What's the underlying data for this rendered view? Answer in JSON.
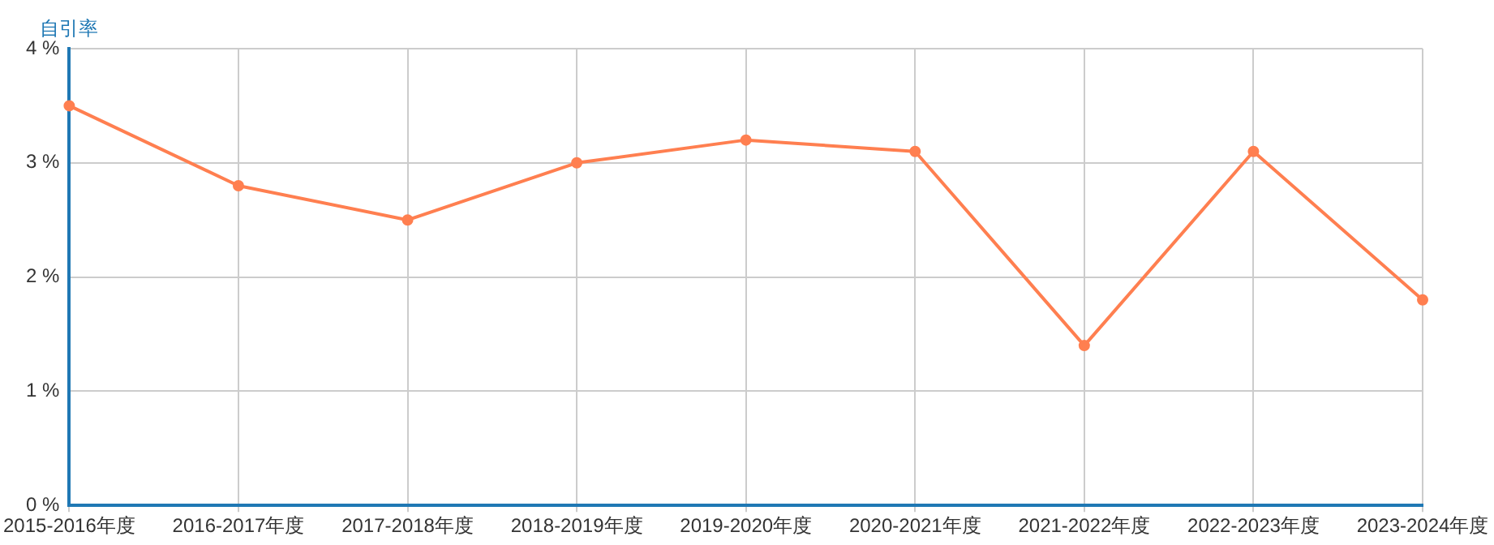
{
  "chart_data": {
    "type": "line",
    "ylabel": "自引率",
    "categories": [
      "2015-2016年度",
      "2016-2017年度",
      "2017-2018年度",
      "2018-2019年度",
      "2019-2020年度",
      "2020-2021年度",
      "2021-2022年度",
      "2022-2023年度",
      "2023-2024年度"
    ],
    "series": [
      {
        "color": "#ff7f50",
        "values": [
          3.5,
          2.8,
          2.5,
          3.0,
          3.2,
          3.1,
          1.4,
          3.1,
          1.8
        ]
      }
    ],
    "ylim": [
      0,
      4
    ],
    "yticks": [
      {
        "value": 0,
        "label": "0 %"
      },
      {
        "value": 1,
        "label": "1 %"
      },
      {
        "value": 2,
        "label": "2 %"
      },
      {
        "value": 3,
        "label": "3 %"
      },
      {
        "value": 4,
        "label": "4 %"
      }
    ],
    "grid": true,
    "marker": "circle",
    "line_style": "solid",
    "legend": false
  }
}
